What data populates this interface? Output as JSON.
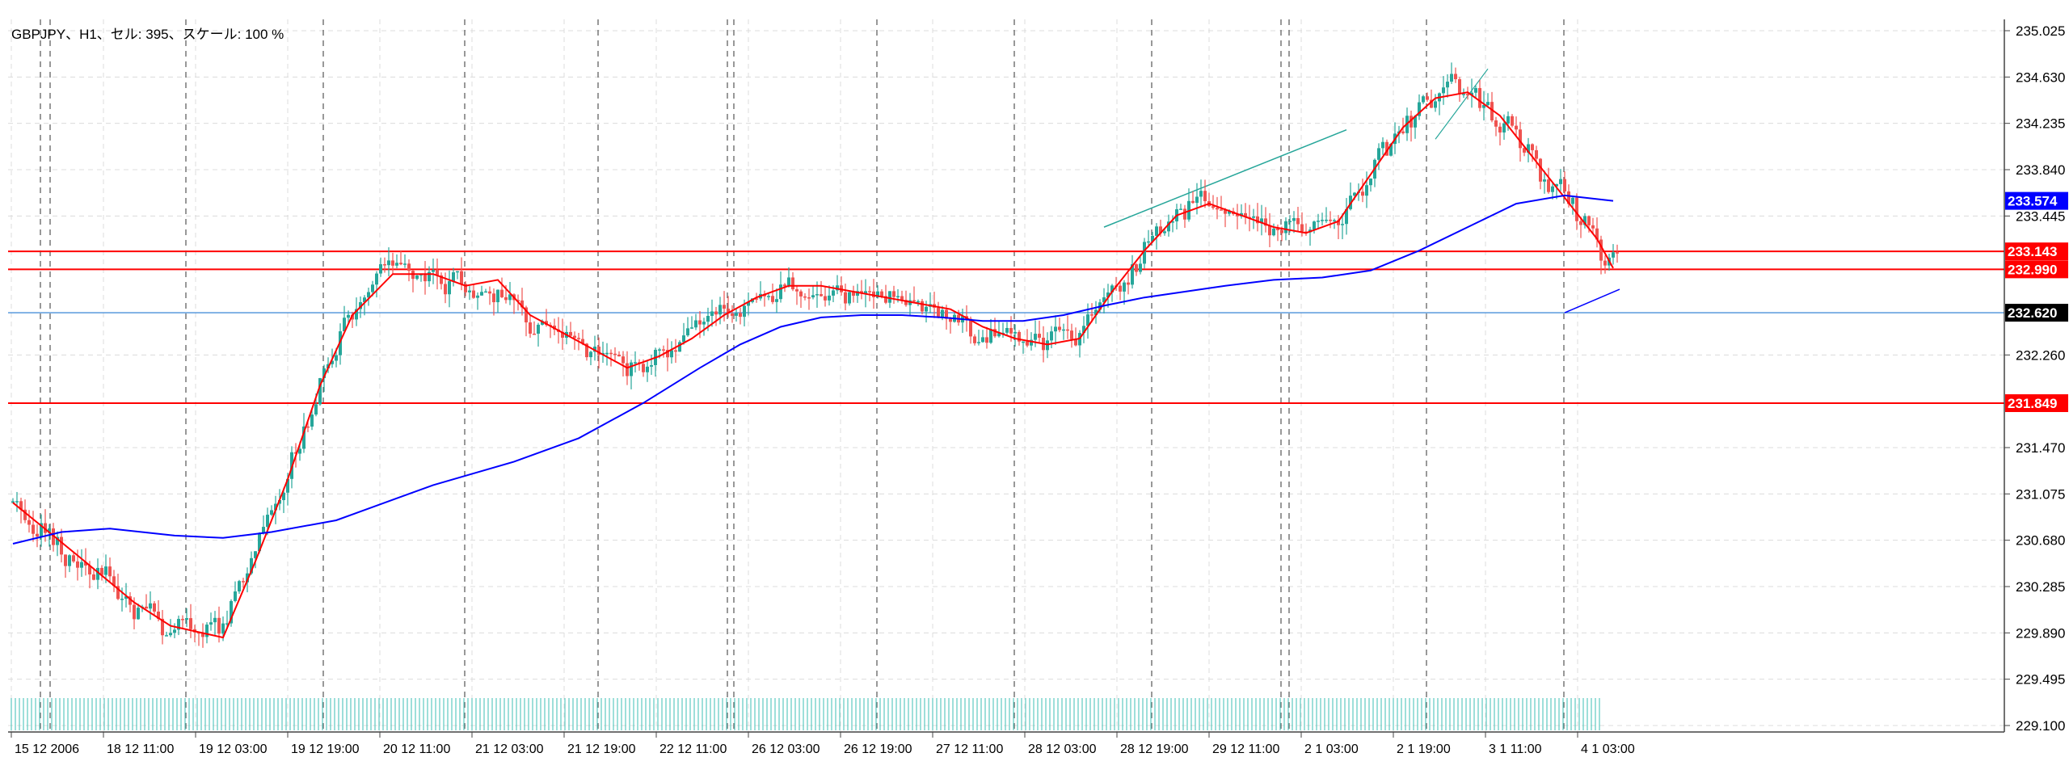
{
  "chart_label": "GBPJPY、H1、セル: 395、スケール: 100 %",
  "colors": {
    "background": "#ffffff",
    "bull_candle": "#26a69a",
    "bear_candle": "#ef5350",
    "ma_fast": "#ff0000",
    "ma_slow": "#0000ff",
    "level_line": "#ff0000",
    "current_price_line": "#4a90d9",
    "grid": "#dcdcdc",
    "session_separator": "#555555",
    "trendline": "#26a69a"
  },
  "chart_data": {
    "type": "candlestick",
    "symbol": "GBPJPY",
    "timeframe": "H1",
    "ylim": [
      229.1,
      235.025
    ],
    "y_ticks": [
      "235.025",
      "234.630",
      "234.235",
      "233.840",
      "233.445",
      "232.260",
      "231.470",
      "231.075",
      "230.680",
      "230.285",
      "229.890",
      "229.495",
      "229.100"
    ],
    "x_ticks": [
      "15 12 2006",
      "18 12 11:00",
      "19 12 03:00",
      "19 12 19:00",
      "20 12 11:00",
      "21 12 03:00",
      "21 12 19:00",
      "22 12 11:00",
      "26 12 03:00",
      "26 12 19:00",
      "27 12 11:00",
      "28 12 03:00",
      "28 12 19:00",
      "29 12 11:00",
      "2 1 03:00",
      "2 1 19:00",
      "3 1 11:00",
      "4 1 03:00"
    ],
    "price_labels": [
      {
        "value": "233.574",
        "color": "#0000ff"
      },
      {
        "value": "233.143",
        "color": "#ff0000"
      },
      {
        "value": "232.990",
        "color": "#ff0000"
      },
      {
        "value": "232.620",
        "color": "#000000"
      },
      {
        "value": "231.849",
        "color": "#ff0000"
      }
    ],
    "horizontal_levels": [
      233.143,
      232.99,
      231.849
    ],
    "current_price": 232.62,
    "series": [
      {
        "kind": "ma_fast",
        "points": [
          [
            0,
            231.0
          ],
          [
            80,
            230.55
          ],
          [
            150,
            230.15
          ],
          [
            195,
            229.95
          ],
          [
            260,
            229.85
          ],
          [
            300,
            230.5
          ],
          [
            340,
            231.2
          ],
          [
            380,
            232.0
          ],
          [
            420,
            232.6
          ],
          [
            470,
            232.95
          ],
          [
            520,
            232.95
          ],
          [
            560,
            232.85
          ],
          [
            600,
            232.9
          ],
          [
            640,
            232.6
          ],
          [
            680,
            232.45
          ],
          [
            720,
            232.3
          ],
          [
            760,
            232.15
          ],
          [
            800,
            232.25
          ],
          [
            840,
            232.4
          ],
          [
            880,
            232.6
          ],
          [
            920,
            232.75
          ],
          [
            960,
            232.85
          ],
          [
            1000,
            232.85
          ],
          [
            1040,
            232.8
          ],
          [
            1080,
            232.75
          ],
          [
            1120,
            232.7
          ],
          [
            1160,
            232.65
          ],
          [
            1200,
            232.5
          ],
          [
            1240,
            232.4
          ],
          [
            1280,
            232.35
          ],
          [
            1320,
            232.4
          ],
          [
            1360,
            232.8
          ],
          [
            1400,
            233.15
          ],
          [
            1440,
            233.45
          ],
          [
            1480,
            233.55
          ],
          [
            1520,
            233.45
          ],
          [
            1560,
            233.35
          ],
          [
            1600,
            233.3
          ],
          [
            1640,
            233.4
          ],
          [
            1680,
            233.8
          ],
          [
            1720,
            234.2
          ],
          [
            1760,
            234.45
          ],
          [
            1800,
            234.5
          ],
          [
            1840,
            234.3
          ],
          [
            1880,
            233.95
          ],
          [
            1920,
            233.6
          ],
          [
            1960,
            233.25
          ],
          [
            1980,
            233.0
          ]
        ]
      },
      {
        "kind": "ma_slow",
        "points": [
          [
            0,
            230.65
          ],
          [
            60,
            230.75
          ],
          [
            120,
            230.78
          ],
          [
            200,
            230.72
          ],
          [
            260,
            230.7
          ],
          [
            320,
            230.75
          ],
          [
            400,
            230.85
          ],
          [
            460,
            231.0
          ],
          [
            520,
            231.15
          ],
          [
            570,
            231.25
          ],
          [
            620,
            231.35
          ],
          [
            700,
            231.55
          ],
          [
            780,
            231.85
          ],
          [
            850,
            232.15
          ],
          [
            900,
            232.35
          ],
          [
            950,
            232.5
          ],
          [
            1000,
            232.58
          ],
          [
            1050,
            232.6
          ],
          [
            1100,
            232.6
          ],
          [
            1150,
            232.58
          ],
          [
            1200,
            232.55
          ],
          [
            1250,
            232.55
          ],
          [
            1300,
            232.6
          ],
          [
            1350,
            232.68
          ],
          [
            1400,
            232.75
          ],
          [
            1450,
            232.8
          ],
          [
            1500,
            232.85
          ],
          [
            1560,
            232.9
          ],
          [
            1620,
            232.92
          ],
          [
            1680,
            232.98
          ],
          [
            1740,
            233.15
          ],
          [
            1800,
            233.35
          ],
          [
            1860,
            233.55
          ],
          [
            1920,
            233.62
          ],
          [
            1980,
            233.574
          ]
        ]
      }
    ]
  }
}
